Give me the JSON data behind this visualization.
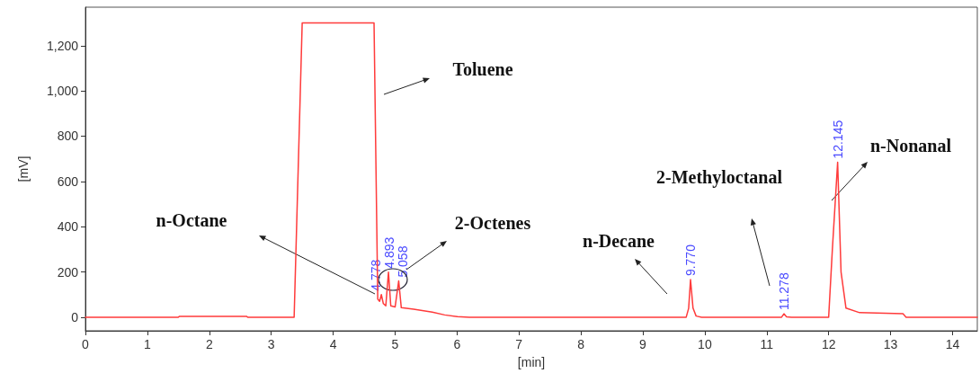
{
  "chart_data": {
    "type": "line",
    "xlabel": "[min]",
    "ylabel": "[mV]",
    "marker": "none",
    "xlim": [
      0,
      14.4
    ],
    "xticks": [
      0,
      1,
      2,
      3,
      4,
      5,
      6,
      7,
      8,
      9,
      10,
      11,
      12,
      13,
      14
    ],
    "ylim": [
      -60,
      1370
    ],
    "yticks": [
      0,
      200,
      400,
      600,
      800,
      {
        "value": 1000,
        "label": "1,000"
      },
      {
        "value": 1200,
        "label": "1,200"
      }
    ],
    "series": [
      {
        "color": "#ff3b3b",
        "x": [
          0,
          1.5,
          1.52,
          2.6,
          2.62,
          3.37,
          3.5,
          4.66,
          4.72,
          4.75,
          4.778,
          4.81,
          4.85,
          4.893,
          4.93,
          5.0,
          5.058,
          5.1,
          5.3,
          5.6,
          5.8,
          6.0,
          6.2,
          9.7,
          9.74,
          9.77,
          9.81,
          9.86,
          9.95,
          11.24,
          11.278,
          11.32,
          11.4,
          12.0,
          12.06,
          12.145,
          12.2,
          12.28,
          12.5,
          13.2,
          13.25,
          14.4
        ],
        "values": [
          0,
          0,
          4,
          4,
          0,
          0,
          1300,
          1300,
          80,
          70,
          100,
          60,
          50,
          199,
          50,
          45,
          160,
          42,
          35,
          22,
          10,
          3,
          0,
          0,
          40,
          166,
          40,
          5,
          0,
          0,
          15,
          2,
          0,
          0,
          300,
          685,
          200,
          40,
          20,
          15,
          0,
          0
        ]
      }
    ],
    "annotations": [
      {
        "text": "4.778",
        "x": 4.778,
        "y": 100
      },
      {
        "text": "4.893",
        "x": 4.893,
        "y": 199
      },
      {
        "text": "5.058",
        "x": 5.058,
        "y": 160
      },
      {
        "text": "9.770",
        "x": 9.77,
        "y": 166
      },
      {
        "text": "11.278",
        "x": 11.278,
        "y": 15
      },
      {
        "text": "12.145",
        "x": 12.145,
        "y": 685
      },
      "Toluene",
      "n-Octane",
      "2-Octenes",
      "n-Decane",
      "2-Methyloctanal",
      "n-Nonanal"
    ]
  }
}
